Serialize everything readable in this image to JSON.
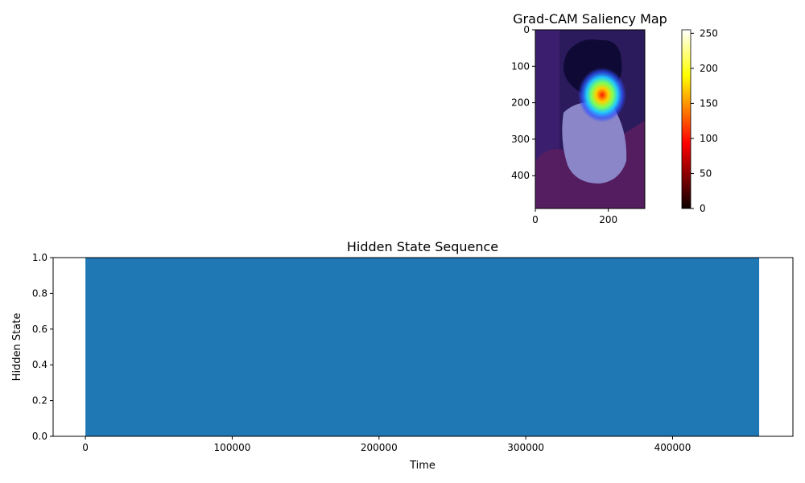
{
  "chart_data": [
    {
      "type": "heatmap",
      "title": "Grad-CAM Saliency Map",
      "image_width": 300,
      "image_height": 490,
      "xlim": [
        0,
        300
      ],
      "ylim": [
        490,
        0
      ],
      "x_ticks": [
        0,
        200
      ],
      "y_ticks": [
        0,
        100,
        200,
        300,
        400
      ],
      "image_subject": "dog",
      "colormap": "jet",
      "hotspot": {
        "x": 185,
        "y": 180
      },
      "colors": {
        "background": "#2b1a5c",
        "overlay": "#3a2ad0",
        "hot": "#ff2a00"
      },
      "colorbar": {
        "colormap": "hot",
        "min": 0,
        "max": 255,
        "ticks": [
          0,
          50,
          100,
          150,
          200,
          250
        ]
      }
    },
    {
      "type": "bar",
      "title": "Hidden State Sequence",
      "xlabel": "Time",
      "ylabel": "Hidden State",
      "xlim": [
        -22000,
        482000
      ],
      "ylim": [
        0,
        1
      ],
      "x_ticks": [
        0,
        100000,
        200000,
        300000,
        400000
      ],
      "y_ticks": [
        0.0,
        0.2,
        0.4,
        0.6,
        0.8,
        1.0
      ],
      "fill": {
        "x_start": 0,
        "x_end": 459000,
        "value": 1.0
      },
      "color": "#1f77b4",
      "grid": false
    }
  ]
}
